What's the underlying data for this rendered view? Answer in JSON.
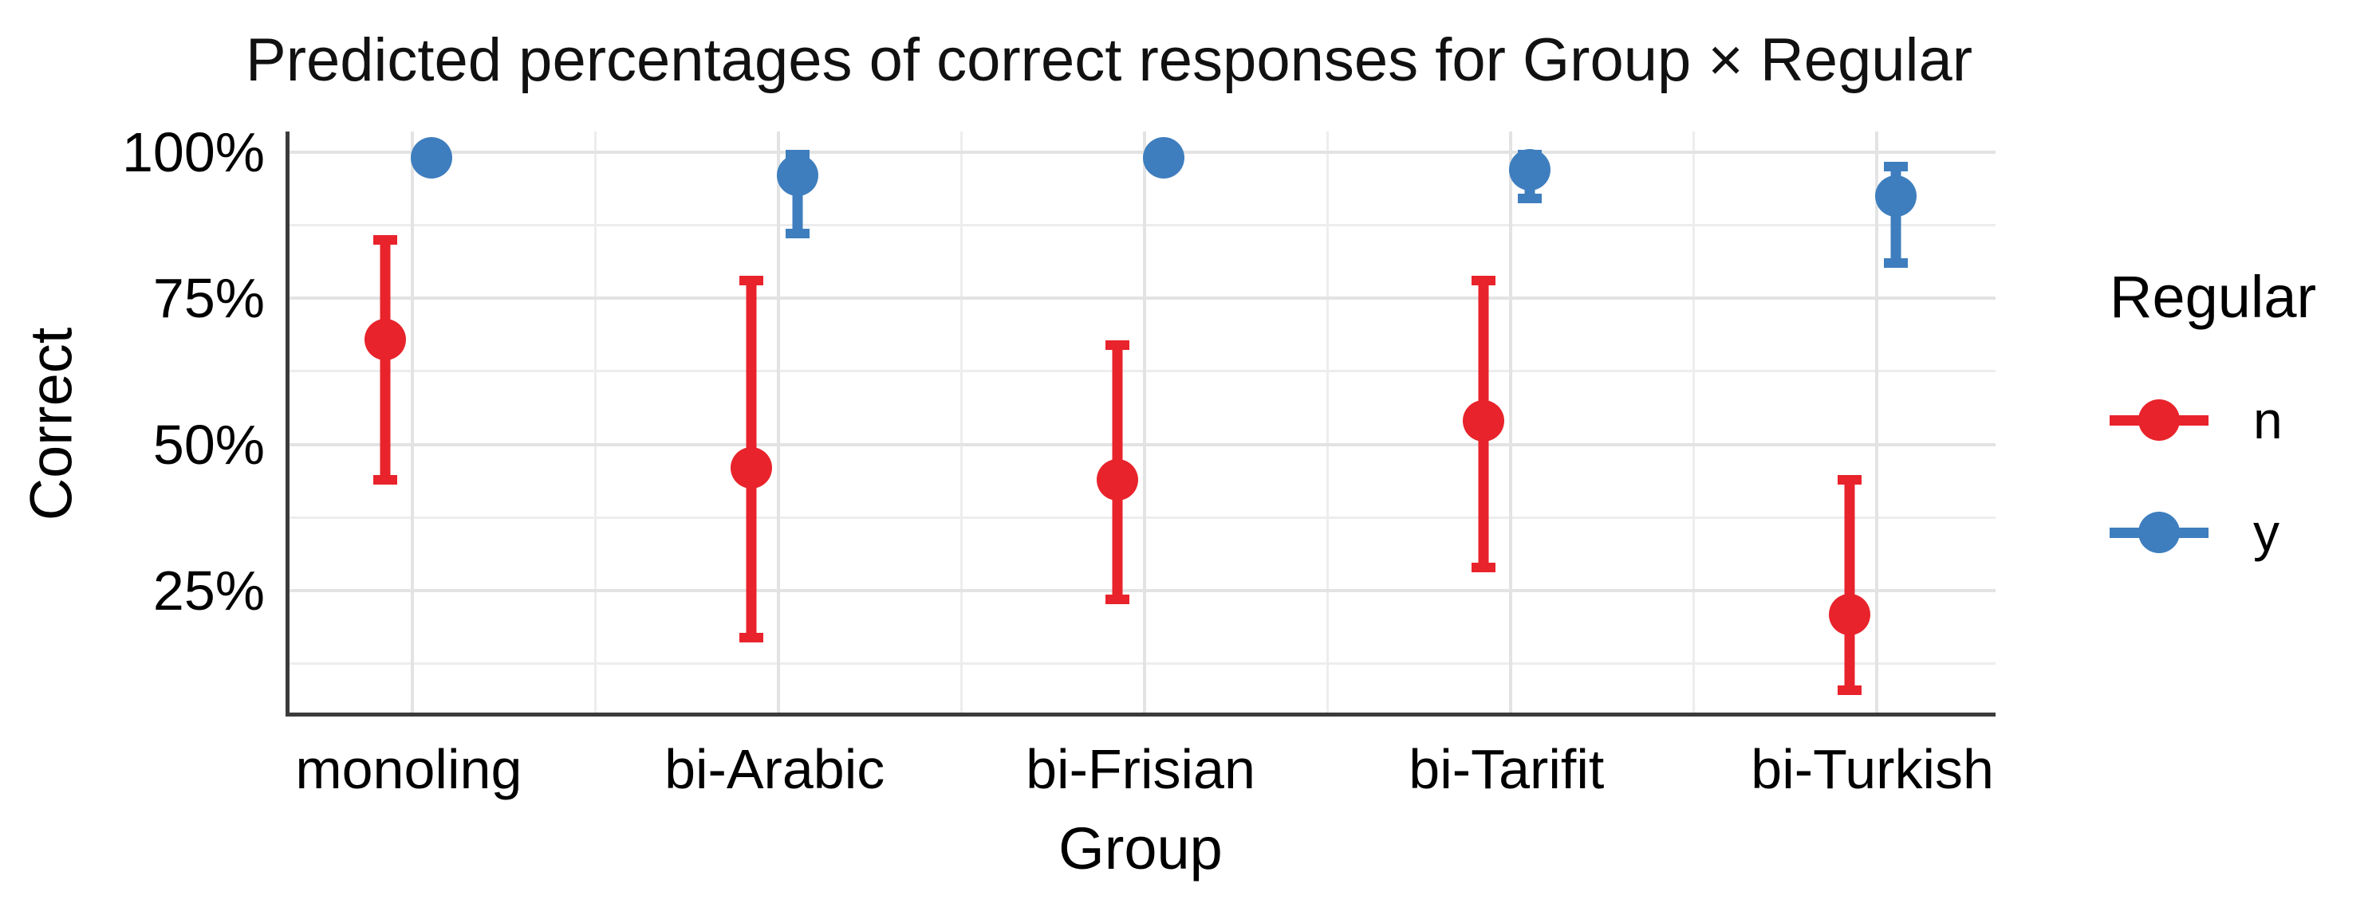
{
  "chart_data": {
    "type": "pointrange",
    "title": "Predicted percentages of correct responses for Group × Regular",
    "xlabel": "Group",
    "ylabel": "Correct",
    "categories": [
      "monoling",
      "bi-Arabic",
      "bi-Frisian",
      "bi-Tarifit",
      "bi-Turkish"
    ],
    "y_axis": {
      "unit": "percent",
      "ticks": [
        {
          "value": 100,
          "label": "100%"
        },
        {
          "value": 75,
          "label": "75%"
        },
        {
          "value": 50,
          "label": "50%"
        },
        {
          "value": 25,
          "label": "25%"
        }
      ],
      "minor_tick_values": [
        87.5,
        62.5,
        37.5,
        12.5
      ],
      "panel_range": [
        3.5,
        103.5
      ],
      "grid": true
    },
    "legend": {
      "title": "Regular",
      "position": "right",
      "items": [
        {
          "label": "n",
          "color": "#e8232b"
        },
        {
          "label": "y",
          "color": "#3e7ebe"
        }
      ]
    },
    "series": [
      {
        "name": "n",
        "color": "#e8232b",
        "points": [
          {
            "group": "monoling",
            "mean": 68,
            "ci_low": 44,
            "ci_high": 85
          },
          {
            "group": "bi-Arabic",
            "mean": 46,
            "ci_low": 17,
            "ci_high": 78
          },
          {
            "group": "bi-Frisian",
            "mean": 44,
            "ci_low": 23.5,
            "ci_high": 67
          },
          {
            "group": "bi-Tarifit",
            "mean": 54,
            "ci_low": 29,
            "ci_high": 78
          },
          {
            "group": "bi-Turkish",
            "mean": 21,
            "ci_low": 8,
            "ci_high": 44
          }
        ]
      },
      {
        "name": "y",
        "color": "#3e7ebe",
        "points": [
          {
            "group": "monoling",
            "mean": 99,
            "ci_low": null,
            "ci_high": null
          },
          {
            "group": "bi-Arabic",
            "mean": 96,
            "ci_low": 86,
            "ci_high": 99.5
          },
          {
            "group": "bi-Frisian",
            "mean": 99,
            "ci_low": null,
            "ci_high": null
          },
          {
            "group": "bi-Tarifit",
            "mean": 97,
            "ci_low": 92,
            "ci_high": 99.5
          },
          {
            "group": "bi-Turkish",
            "mean": 92.5,
            "ci_low": 81,
            "ci_high": 97.5
          }
        ]
      }
    ],
    "colors": {
      "grid_major": "#e3e3e3",
      "grid_minor": "#ededed",
      "axis_line": "#3b3b3b",
      "text": "#000000"
    }
  }
}
